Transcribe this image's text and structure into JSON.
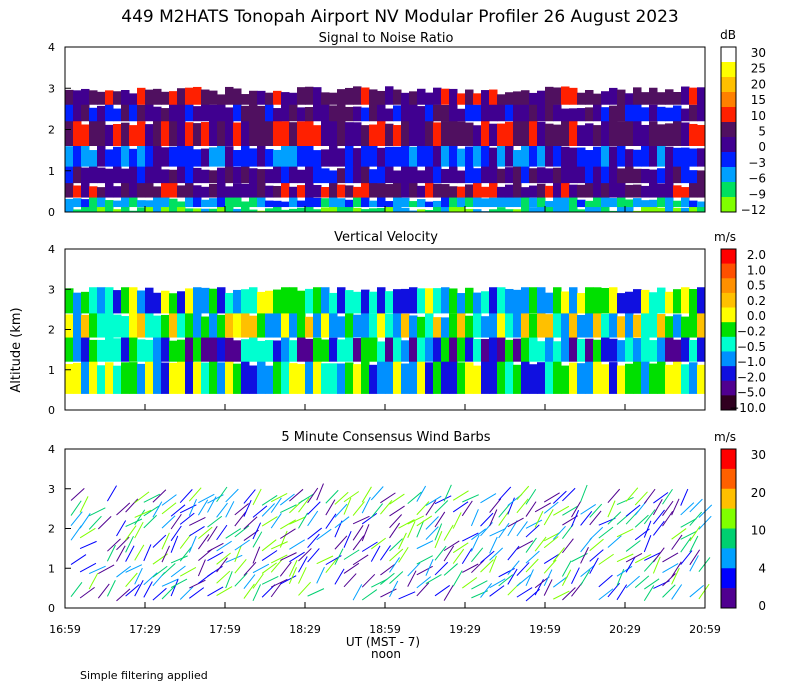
{
  "title": "449 M2HATS Tonopah Airport NV Modular Profiler 26 August 2023",
  "ylabel": "Altitude (km)",
  "footnote": "Simple filtering applied",
  "xaxis": {
    "ticks": [
      "16:59",
      "17:29",
      "17:59",
      "18:29",
      "18:59",
      "19:29",
      "19:59",
      "20:29",
      "20:59"
    ],
    "label": "UT  (MST - 7)",
    "sublabel": "noon"
  },
  "chart_data": [
    {
      "type": "heatmap",
      "title": "Signal to Noise Ratio",
      "yticks": [
        "0",
        "1",
        "2",
        "3",
        "4"
      ],
      "ylim": [
        0,
        4
      ],
      "colorbar": {
        "unit": "dB",
        "labels": [
          "30",
          "25",
          "20",
          "15",
          "10",
          "5",
          "0",
          "−3",
          "−6",
          "−9",
          "−12"
        ],
        "colors": [
          "#ffffff",
          "#ffff00",
          "#ffc000",
          "#ff8000",
          "#ff2000",
          "#501060",
          "#400090",
          "#0020ff",
          "#00a0ff",
          "#00e060",
          "#80ff00"
        ]
      }
    },
    {
      "type": "heatmap",
      "title": "Vertical Velocity",
      "yticks": [
        "0",
        "1",
        "2",
        "3",
        "4"
      ],
      "ylim": [
        0,
        4
      ],
      "colorbar": {
        "unit": "m/s",
        "labels": [
          "2.0",
          "1.0",
          "0.5",
          "0.2",
          "0.0",
          "−0.2",
          "−0.5",
          "−1.0",
          "−2.0",
          "−5.0",
          "−10.0"
        ],
        "colors": [
          "#ff0000",
          "#ff5000",
          "#ff9000",
          "#ffc000",
          "#ffff00",
          "#00e000",
          "#00ffd0",
          "#0090ff",
          "#1010e0",
          "#500090",
          "#300020"
        ]
      }
    },
    {
      "type": "scatter",
      "title": "5 Minute Consensus Wind Barbs",
      "yticks": [
        "0",
        "1",
        "2",
        "3",
        "4"
      ],
      "ylim": [
        0,
        4
      ],
      "colorbar": {
        "unit": "m/s",
        "labels": [
          "30",
          "20",
          "10",
          "4",
          "0"
        ],
        "colors": [
          "#ff0000",
          "#ff6000",
          "#ffc000",
          "#80ff00",
          "#00d070",
          "#00a0ff",
          "#0000ff",
          "#500090"
        ]
      }
    }
  ]
}
